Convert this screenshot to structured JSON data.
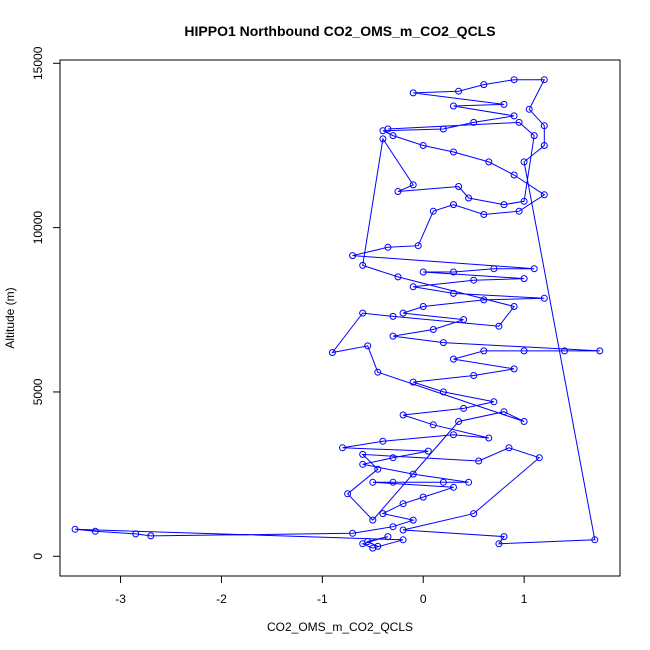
{
  "chart_data": {
    "type": "scatter",
    "title": "HIPPO1 Northbound CO2_OMS_m_CO2_QCLS",
    "xlabel": "CO2_OMS_m_CO2_QCLS",
    "ylabel": "Altitude (m)",
    "xlim": [
      -3.6,
      1.95
    ],
    "ylim": [
      -600,
      15100
    ],
    "xticks": [
      -3,
      -2,
      -1,
      0,
      1
    ],
    "yticks": [
      0,
      5000,
      10000,
      15000
    ],
    "marker": "open-circle",
    "line_connected": true,
    "color": "#0000ff",
    "grid": false,
    "series": [
      {
        "values_xy": [
          [
            -0.45,
            300
          ],
          [
            -0.55,
            450
          ],
          [
            -0.35,
            600
          ],
          [
            -0.6,
            380
          ],
          [
            -0.5,
            250
          ],
          [
            -0.2,
            500
          ],
          [
            -3.45,
            820
          ],
          [
            -3.25,
            760
          ],
          [
            -2.85,
            680
          ],
          [
            -2.7,
            620
          ],
          [
            -0.7,
            700
          ],
          [
            -0.3,
            900
          ],
          [
            -0.1,
            1100
          ],
          [
            -0.4,
            1300
          ],
          [
            -0.2,
            1600
          ],
          [
            0.0,
            1800
          ],
          [
            0.3,
            2100
          ],
          [
            -0.5,
            2250
          ],
          [
            -0.3,
            2250
          ],
          [
            0.2,
            2250
          ],
          [
            0.45,
            2250
          ],
          [
            -0.1,
            2500
          ],
          [
            -0.6,
            2800
          ],
          [
            -0.3,
            3000
          ],
          [
            0.05,
            3200
          ],
          [
            -0.8,
            3300
          ],
          [
            -0.4,
            3500
          ],
          [
            0.3,
            3700
          ],
          [
            0.65,
            3600
          ],
          [
            0.1,
            4000
          ],
          [
            -0.2,
            4300
          ],
          [
            0.4,
            4500
          ],
          [
            0.7,
            4700
          ],
          [
            0.2,
            5000
          ],
          [
            -0.1,
            5300
          ],
          [
            0.5,
            5500
          ],
          [
            0.9,
            5700
          ],
          [
            0.3,
            6000
          ],
          [
            0.6,
            6250
          ],
          [
            1.0,
            6250
          ],
          [
            1.4,
            6250
          ],
          [
            1.75,
            6250
          ],
          [
            0.2,
            6500
          ],
          [
            -0.3,
            6700
          ],
          [
            0.1,
            6900
          ],
          [
            0.4,
            7200
          ],
          [
            -0.2,
            7400
          ],
          [
            0.0,
            7600
          ],
          [
            0.6,
            7800
          ],
          [
            1.2,
            7850
          ],
          [
            0.3,
            8000
          ],
          [
            -0.1,
            8200
          ],
          [
            0.5,
            8400
          ],
          [
            1.0,
            8450
          ],
          [
            0.0,
            8650
          ],
          [
            0.3,
            8650
          ],
          [
            0.7,
            8750
          ],
          [
            1.1,
            8750
          ],
          [
            -0.7,
            9150
          ],
          [
            -0.35,
            9400
          ],
          [
            -0.05,
            9450
          ],
          [
            0.1,
            10500
          ],
          [
            0.3,
            10700
          ],
          [
            0.6,
            10400
          ],
          [
            0.95,
            10500
          ],
          [
            1.2,
            11000
          ],
          [
            0.9,
            11600
          ],
          [
            0.65,
            12000
          ],
          [
            0.3,
            12300
          ],
          [
            0.0,
            12500
          ],
          [
            -0.3,
            12800
          ],
          [
            -0.4,
            12950
          ],
          [
            0.2,
            13000
          ],
          [
            0.5,
            13200
          ],
          [
            0.9,
            13400
          ],
          [
            0.3,
            13700
          ],
          [
            0.8,
            13750
          ],
          [
            -0.1,
            14100
          ],
          [
            0.35,
            14150
          ],
          [
            0.6,
            14350
          ],
          [
            0.9,
            14500
          ],
          [
            1.2,
            14500
          ],
          [
            1.05,
            13600
          ],
          [
            1.2,
            13100
          ],
          [
            1.2,
            12500
          ],
          [
            1.0,
            12000
          ],
          [
            1.7,
            500
          ],
          [
            0.75,
            380
          ],
          [
            0.8,
            600
          ],
          [
            -0.2,
            800
          ],
          [
            0.5,
            1300
          ],
          [
            1.15,
            3000
          ],
          [
            0.85,
            3300
          ],
          [
            0.55,
            2900
          ],
          [
            -0.6,
            3100
          ],
          [
            -0.45,
            2650
          ],
          [
            -0.75,
            1900
          ],
          [
            -0.5,
            1100
          ],
          [
            0.35,
            4100
          ],
          [
            0.8,
            4400
          ],
          [
            1.0,
            4100
          ],
          [
            -0.45,
            5600
          ],
          [
            -0.55,
            6400
          ],
          [
            -0.9,
            6200
          ],
          [
            -0.6,
            7400
          ],
          [
            -0.3,
            7300
          ],
          [
            0.75,
            7000
          ],
          [
            0.9,
            7600
          ],
          [
            -0.25,
            8500
          ],
          [
            -0.6,
            8850
          ],
          [
            -0.4,
            12700
          ],
          [
            -0.1,
            11300
          ],
          [
            -0.25,
            11100
          ],
          [
            0.35,
            11250
          ],
          [
            0.45,
            10900
          ],
          [
            0.8,
            10700
          ],
          [
            1.0,
            10800
          ],
          [
            1.1,
            12800
          ],
          [
            0.95,
            13200
          ],
          [
            -0.35,
            13000
          ]
        ]
      }
    ]
  }
}
